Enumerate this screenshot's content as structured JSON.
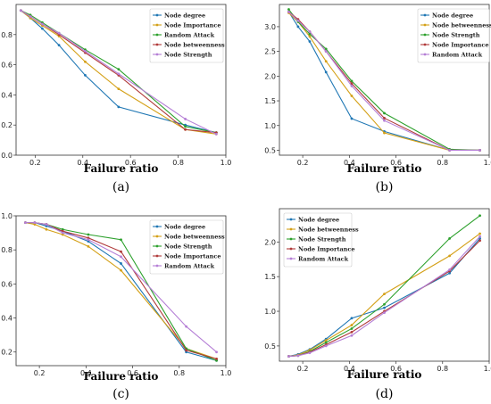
{
  "colors": {
    "blue": "#1f77b4",
    "orange": "#d4a017",
    "green": "#2ca02c",
    "red": "#b03a3a",
    "purple": "#b57fd6"
  },
  "chart_data": [
    {
      "type": "line",
      "panel_label": "(a)",
      "xlabel": "Failure ratio",
      "xlim": [
        0.12,
        1.0
      ],
      "ylim": [
        0.0,
        1.0
      ],
      "xticks": [
        "0.2",
        "0.4",
        "0.6",
        "0.8",
        "1.0"
      ],
      "yticks": [
        "0.0",
        "0.2",
        "0.4",
        "0.6",
        "0.8"
      ],
      "legend_position": "top-right",
      "x": [
        0.14,
        0.18,
        0.23,
        0.3,
        0.41,
        0.55,
        0.83,
        0.96
      ],
      "series": [
        {
          "name": "Node degree",
          "color": "blue",
          "values": [
            0.96,
            0.91,
            0.84,
            0.73,
            0.53,
            0.32,
            0.2,
            0.15
          ]
        },
        {
          "name": "Node Importance",
          "color": "orange",
          "values": [
            0.96,
            0.91,
            0.86,
            0.79,
            0.62,
            0.44,
            0.17,
            0.14
          ]
        },
        {
          "name": "Random Attack",
          "color": "green",
          "values": [
            0.96,
            0.93,
            0.88,
            0.81,
            0.7,
            0.57,
            0.19,
            0.15
          ]
        },
        {
          "name": "Node betweenness",
          "color": "red",
          "values": [
            0.96,
            0.92,
            0.87,
            0.8,
            0.68,
            0.53,
            0.17,
            0.15
          ]
        },
        {
          "name": "Node Strength",
          "color": "purple",
          "values": [
            0.96,
            0.92,
            0.87,
            0.81,
            0.69,
            0.54,
            0.24,
            0.14
          ]
        }
      ]
    },
    {
      "type": "line",
      "panel_label": "(b)",
      "xlabel": "Failure ratio",
      "xlim": [
        0.1,
        1.0
      ],
      "ylim": [
        0.4,
        3.45
      ],
      "xticks": [
        "0.2",
        "0.4",
        "0.6",
        "0.8",
        "1.0"
      ],
      "yticks": [
        "0.5",
        "1.0",
        "1.5",
        "2.0",
        "2.5",
        "3.0"
      ],
      "legend_position": "top-right",
      "x": [
        0.14,
        0.18,
        0.23,
        0.3,
        0.41,
        0.55,
        0.83,
        0.96
      ],
      "series": [
        {
          "name": "Node degree",
          "color": "blue",
          "values": [
            3.3,
            3.0,
            2.7,
            2.08,
            1.14,
            0.88,
            0.5,
            0.5
          ]
        },
        {
          "name": "Node betweenness",
          "color": "orange",
          "values": [
            3.28,
            3.1,
            2.8,
            2.3,
            1.6,
            0.85,
            0.5,
            0.5
          ]
        },
        {
          "name": "Node Strength",
          "color": "green",
          "values": [
            3.35,
            3.1,
            2.85,
            2.55,
            1.9,
            1.25,
            0.52,
            0.5
          ]
        },
        {
          "name": "Node Importance",
          "color": "red",
          "values": [
            3.3,
            3.15,
            2.9,
            2.5,
            1.85,
            1.15,
            0.5,
            0.5
          ]
        },
        {
          "name": "Random Attack",
          "color": "purple",
          "values": [
            3.3,
            3.12,
            2.9,
            2.5,
            1.8,
            1.1,
            0.5,
            0.5
          ]
        }
      ]
    },
    {
      "type": "line",
      "panel_label": "(c)",
      "xlabel": "Failure ratio",
      "xlim": [
        0.1,
        1.0
      ],
      "ylim": [
        0.12,
        1.0
      ],
      "xticks": [
        "0.2",
        "0.4",
        "0.6",
        "0.8",
        "1.0"
      ],
      "yticks": [
        "0.2",
        "0.4",
        "0.6",
        "0.8",
        "1.0"
      ],
      "legend_position": "top-right",
      "x": [
        0.14,
        0.18,
        0.23,
        0.3,
        0.41,
        0.55,
        0.83,
        0.96
      ],
      "series": [
        {
          "name": "Node degree",
          "color": "blue",
          "values": [
            0.96,
            0.96,
            0.94,
            0.91,
            0.85,
            0.72,
            0.2,
            0.15
          ]
        },
        {
          "name": "Node betweenness",
          "color": "orange",
          "values": [
            0.96,
            0.95,
            0.92,
            0.89,
            0.82,
            0.68,
            0.22,
            0.16
          ]
        },
        {
          "name": "Node Strength",
          "color": "green",
          "values": [
            0.96,
            0.96,
            0.95,
            0.92,
            0.89,
            0.86,
            0.22,
            0.15
          ]
        },
        {
          "name": "Node Importance",
          "color": "red",
          "values": [
            0.96,
            0.96,
            0.95,
            0.91,
            0.87,
            0.79,
            0.21,
            0.16
          ]
        },
        {
          "name": "Random Attack",
          "color": "purple",
          "values": [
            0.96,
            0.96,
            0.95,
            0.9,
            0.86,
            0.76,
            0.35,
            0.2
          ]
        }
      ]
    },
    {
      "type": "line",
      "panel_label": "(d)",
      "xlabel": "Failure ratio",
      "xlim": [
        0.1,
        1.0
      ],
      "ylim": [
        0.28,
        2.48
      ],
      "xticks": [
        "0.2",
        "0.4",
        "0.6",
        "0.8",
        "1.0"
      ],
      "yticks": [
        "0.5",
        "1.0",
        "1.5",
        "2.0"
      ],
      "legend_position": "top-left",
      "x": [
        0.14,
        0.18,
        0.23,
        0.3,
        0.41,
        0.55,
        0.83,
        0.96
      ],
      "series": [
        {
          "name": "Node degree",
          "color": "blue",
          "values": [
            0.35,
            0.38,
            0.45,
            0.6,
            0.9,
            1.05,
            1.55,
            2.05
          ]
        },
        {
          "name": "Node betweenness",
          "color": "orange",
          "values": [
            0.35,
            0.37,
            0.44,
            0.58,
            0.8,
            1.25,
            1.8,
            2.12
          ]
        },
        {
          "name": "Node Strength",
          "color": "green",
          "values": [
            0.35,
            0.36,
            0.42,
            0.55,
            0.75,
            1.1,
            2.05,
            2.38
          ]
        },
        {
          "name": "Node Importance",
          "color": "red",
          "values": [
            0.35,
            0.36,
            0.41,
            0.52,
            0.7,
            1.0,
            1.58,
            2.02
          ]
        },
        {
          "name": "Random Attack",
          "color": "purple",
          "values": [
            0.35,
            0.36,
            0.4,
            0.5,
            0.65,
            0.98,
            1.6,
            2.08
          ]
        }
      ]
    }
  ]
}
